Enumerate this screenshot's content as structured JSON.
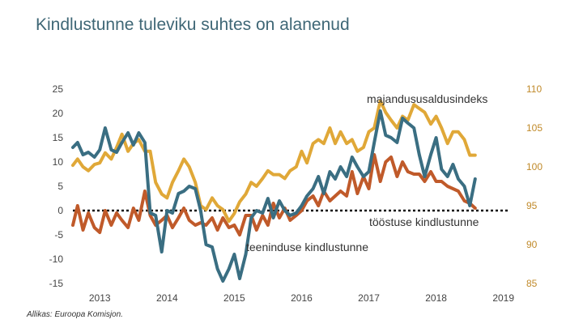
{
  "title": "Kindlustunne tuleviku suhtes on alanenud",
  "source": "Allikas: Euroopa Komisjon.",
  "chart_data": {
    "type": "line",
    "title": "Kindlustunne tuleviku suhtes on alanenud",
    "x_tick_labels": [
      "2013",
      "2014",
      "2015",
      "2016",
      "2017",
      "2018",
      "2019"
    ],
    "x_range": [
      2012.6,
      2019.1
    ],
    "y_left_range": [
      -15,
      25
    ],
    "y_left_ticks": [
      25,
      20,
      15,
      10,
      5,
      0,
      -5,
      -10,
      -15
    ],
    "y_left_tick_labels": [
      "25",
      "20",
      "15",
      "10",
      "5",
      "0",
      "-5",
      "-10",
      "-15"
    ],
    "y_right_range": [
      85,
      110
    ],
    "y_right_ticks": [
      110,
      105,
      100,
      95,
      90,
      85
    ],
    "y_right_tick_labels": [
      "110",
      "105",
      "100",
      "95",
      "90",
      "85"
    ],
    "series": [
      {
        "name": "majandususaldusindeks",
        "axis": "right",
        "color": "#e0a838",
        "x": [
          2012.6,
          2012.67,
          2012.75,
          2012.83,
          2012.92,
          2013.0,
          2013.08,
          2013.17,
          2013.25,
          2013.33,
          2013.42,
          2013.5,
          2013.58,
          2013.67,
          2013.75,
          2013.83,
          2013.92,
          2014.0,
          2014.08,
          2014.17,
          2014.25,
          2014.33,
          2014.42,
          2014.5,
          2014.58,
          2014.67,
          2014.75,
          2014.83,
          2014.92,
          2015.0,
          2015.08,
          2015.17,
          2015.25,
          2015.33,
          2015.42,
          2015.5,
          2015.58,
          2015.67,
          2015.75,
          2015.83,
          2015.92,
          2016.0,
          2016.08,
          2016.17,
          2016.25,
          2016.33,
          2016.42,
          2016.5,
          2016.58,
          2016.67,
          2016.75,
          2016.83,
          2016.92,
          2017.0,
          2017.08,
          2017.17,
          2017.25,
          2017.33,
          2017.42,
          2017.5,
          2017.58,
          2017.67,
          2017.75,
          2017.83,
          2017.92,
          2018.0,
          2018.08,
          2018.17,
          2018.25,
          2018.33,
          2018.42,
          2018.5,
          2018.58
        ],
        "values": [
          100.2,
          101.0,
          100.0,
          99.5,
          100.3,
          100.5,
          101.8,
          101.0,
          102.5,
          104.2,
          102.0,
          103.0,
          103.5,
          102.0,
          102.0,
          98.0,
          96.5,
          96.0,
          98.0,
          99.5,
          101.0,
          100.0,
          98.0,
          95.0,
          94.5,
          96.0,
          95.0,
          94.5,
          93.0,
          94.0,
          95.5,
          96.5,
          98.0,
          97.5,
          98.5,
          99.5,
          99.0,
          99.0,
          98.5,
          99.5,
          100.0,
          102.0,
          100.5,
          103.0,
          103.5,
          103.0,
          105.0,
          103.0,
          104.5,
          103.0,
          103.5,
          102.0,
          102.5,
          104.5,
          105.0,
          108.5,
          107.0,
          106.0,
          105.0,
          106.5,
          106.0,
          108.0,
          107.5,
          107.0,
          105.5,
          106.5,
          105.0,
          103.0,
          104.5,
          104.5,
          103.5,
          101.5,
          101.5
        ]
      },
      {
        "name": "tööstuse kindlustunne",
        "axis": "left",
        "color": "#c05a2a",
        "x": [
          2012.6,
          2012.67,
          2012.75,
          2012.83,
          2012.92,
          2013.0,
          2013.08,
          2013.17,
          2013.25,
          2013.33,
          2013.42,
          2013.5,
          2013.58,
          2013.67,
          2013.75,
          2013.83,
          2013.92,
          2014.0,
          2014.08,
          2014.17,
          2014.25,
          2014.33,
          2014.42,
          2014.5,
          2014.58,
          2014.67,
          2014.75,
          2014.83,
          2014.92,
          2015.0,
          2015.08,
          2015.17,
          2015.25,
          2015.33,
          2015.42,
          2015.5,
          2015.58,
          2015.67,
          2015.75,
          2015.83,
          2015.92,
          2016.0,
          2016.08,
          2016.17,
          2016.25,
          2016.33,
          2016.42,
          2016.5,
          2016.58,
          2016.67,
          2016.75,
          2016.83,
          2016.92,
          2017.0,
          2017.08,
          2017.17,
          2017.25,
          2017.33,
          2017.42,
          2017.5,
          2017.58,
          2017.67,
          2017.75,
          2017.83,
          2017.92,
          2018.0,
          2018.08,
          2018.17,
          2018.25,
          2018.33,
          2018.42,
          2018.5,
          2018.58
        ],
        "values": [
          -3.0,
          1.0,
          -4.0,
          -0.5,
          -3.5,
          -4.5,
          0.0,
          -3.0,
          -0.5,
          -2.0,
          -3.5,
          0.5,
          -2.0,
          4.0,
          -1.0,
          -3.0,
          -2.0,
          -1.0,
          -3.5,
          -1.5,
          0.5,
          -2.0,
          -3.0,
          -2.5,
          -3.0,
          -1.5,
          -4.0,
          -1.5,
          -3.5,
          -3.0,
          -5.0,
          -1.0,
          -1.0,
          -4.0,
          -1.0,
          -3.0,
          1.5,
          -1.5,
          0.5,
          -2.0,
          -1.0,
          0.0,
          2.0,
          3.0,
          1.0,
          4.0,
          2.0,
          3.0,
          4.0,
          3.0,
          8.0,
          3.5,
          7.0,
          4.5,
          11.5,
          6.0,
          10.0,
          11.0,
          7.0,
          10.0,
          8.0,
          7.5,
          7.5,
          6.0,
          8.0,
          6.0,
          6.0,
          5.0,
          4.5,
          4.0,
          2.0,
          1.5,
          0.5
        ]
      },
      {
        "name": "teeninduse kindlustunne",
        "axis": "left",
        "color": "#3a6e82",
        "x": [
          2012.6,
          2012.67,
          2012.75,
          2012.83,
          2012.92,
          2013.0,
          2013.08,
          2013.17,
          2013.25,
          2013.33,
          2013.42,
          2013.5,
          2013.58,
          2013.67,
          2013.75,
          2013.83,
          2013.92,
          2014.0,
          2014.08,
          2014.17,
          2014.25,
          2014.33,
          2014.42,
          2014.5,
          2014.58,
          2014.67,
          2014.75,
          2014.83,
          2014.92,
          2015.0,
          2015.08,
          2015.17,
          2015.25,
          2015.33,
          2015.42,
          2015.5,
          2015.58,
          2015.67,
          2015.75,
          2015.83,
          2015.92,
          2016.0,
          2016.08,
          2016.17,
          2016.25,
          2016.33,
          2016.42,
          2016.5,
          2016.58,
          2016.67,
          2016.75,
          2016.83,
          2016.92,
          2017.0,
          2017.08,
          2017.17,
          2017.25,
          2017.33,
          2017.42,
          2017.5,
          2017.58,
          2017.67,
          2017.75,
          2017.83,
          2017.92,
          2018.0,
          2018.08,
          2018.17,
          2018.25,
          2018.33,
          2018.42,
          2018.5,
          2018.58
        ],
        "values": [
          13.0,
          14.0,
          11.5,
          12.0,
          11.0,
          12.5,
          17.0,
          12.5,
          12.0,
          14.0,
          16.0,
          13.5,
          16.0,
          14.0,
          -0.5,
          -1.0,
          -8.5,
          0.0,
          -0.5,
          3.5,
          4.0,
          5.0,
          4.5,
          0.0,
          -7.0,
          -7.5,
          -12.0,
          -14.5,
          -12.0,
          -9.0,
          -14.0,
          -9.0,
          -1.5,
          0.0,
          -0.5,
          2.5,
          -1.5,
          2.0,
          0.0,
          -1.0,
          -0.5,
          1.0,
          3.0,
          4.5,
          7.0,
          3.5,
          8.0,
          6.5,
          9.0,
          7.0,
          11.0,
          9.0,
          7.0,
          8.0,
          14.0,
          20.5,
          15.5,
          15.0,
          14.0,
          19.0,
          18.0,
          17.0,
          11.5,
          7.0,
          11.5,
          15.0,
          8.5,
          7.0,
          9.5,
          6.5,
          5.0,
          1.0,
          6.5
        ]
      }
    ],
    "reference_line": {
      "value": 0,
      "style": "dotted"
    },
    "annotations": [
      "majandususaldusindeks",
      "tööstuse kindlustunne",
      "teeninduse kindlustunne"
    ]
  }
}
